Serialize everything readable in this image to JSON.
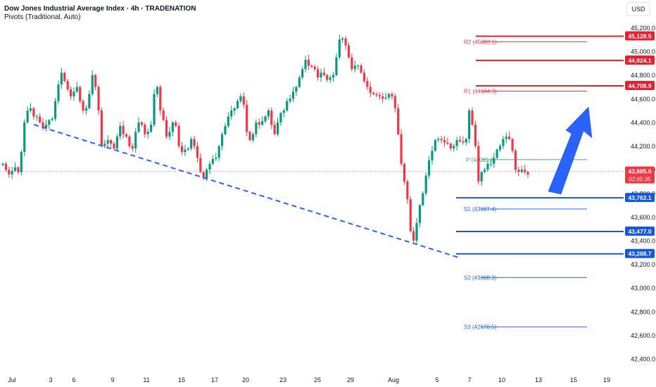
{
  "header": {
    "title": "Dow Jones Industrial Average Index · 4h · TRADENATION",
    "indicator": "Pivots (Traditional, Auto)",
    "currency": "USD"
  },
  "colors": {
    "up": "#089981",
    "down": "#f23645",
    "resistance": "#e5202f",
    "support": "#1558e0",
    "trendline": "#2962ff",
    "arrow": "#2962ff",
    "pivot": "#4caf50"
  },
  "chart_data": {
    "type": "candlestick",
    "timeframe": "4h",
    "ylim": [
      42300,
      45300
    ],
    "x_ticks": [
      "Jul",
      "3",
      "6",
      "9",
      "11",
      "15",
      "17",
      "20",
      "23",
      "25",
      "29",
      "Aug",
      "5",
      "7",
      "10",
      "13",
      "15",
      "19"
    ],
    "y_ticks": [
      "42,400.0",
      "42,600.0",
      "42,800.0",
      "43,000.0",
      "43,200.0",
      "43,400.0",
      "43,600.0",
      "43,800.0",
      "44,000.0",
      "44,200.0",
      "44,400.0",
      "44,600.0",
      "44,800.0",
      "45,000.0",
      "45,200.0"
    ],
    "pivots": [
      {
        "name": "R2",
        "value": 45082.1,
        "label": "R2 (45082.1)"
      },
      {
        "name": "R1",
        "value": 44664.3,
        "label": "R1 (44664.3)"
      },
      {
        "name": "P",
        "value": 44085.0,
        "label": "P (44085.0)"
      },
      {
        "name": "S1",
        "value": 43667.4,
        "label": "S1 (43667.4)"
      },
      {
        "name": "S2",
        "value": 43088.3,
        "label": "S2 (43088.3)"
      },
      {
        "name": "S3",
        "value": 42670.5,
        "label": "S3 (42670.5)"
      }
    ],
    "resistance_levels": [
      {
        "value": 45128.5,
        "label": "45,128.5"
      },
      {
        "value": 44924.1,
        "label": "44,924.1"
      },
      {
        "value": 44708.9,
        "label": "44,708.9"
      }
    ],
    "support_levels": [
      {
        "value": 43762.1,
        "label": "43,762.1"
      },
      {
        "value": 43477.0,
        "label": "43,477.0"
      },
      {
        "value": 43288.7,
        "label": "43,288.7"
      }
    ],
    "current_price": {
      "value": 43985.0,
      "label": "43,985.0",
      "countdown": "02:05:35"
    },
    "closes": [
      44050,
      44000,
      43960,
      43990,
      44020,
      43980,
      44150,
      44400,
      44500,
      44520,
      44450,
      44450,
      44400,
      44350,
      44380,
      44420,
      44430,
      44580,
      44720,
      44820,
      44750,
      44680,
      44620,
      44660,
      44700,
      44580,
      44500,
      44520,
      44640,
      44800,
      44700,
      44500,
      44200,
      44220,
      44250,
      44220,
      44180,
      44280,
      44370,
      44300,
      44280,
      44200,
      44180,
      44320,
      44400,
      44380,
      44300,
      44320,
      44380,
      44640,
      44700,
      44500,
      44420,
      44280,
      44320,
      44400,
      44370,
      44200,
      44150,
      44170,
      44180,
      44260,
      44200,
      44100,
      43980,
      43930,
      44000,
      44050,
      44090,
      44100,
      44200,
      44300,
      44370,
      44450,
      44500,
      44520,
      44580,
      44620,
      44550,
      44320,
      44250,
      44300,
      44400,
      44380,
      44410,
      44450,
      44500,
      44380,
      44300,
      44400,
      44480,
      44500,
      44580,
      44600,
      44660,
      44700,
      44780,
      44850,
      44930,
      44880,
      44870,
      44850,
      44780,
      44820,
      44800,
      44760,
      44780,
      44800,
      44950,
      45100,
      45110,
      45050,
      44950,
      44850,
      44880,
      44880,
      44820,
      44750,
      44700,
      44650,
      44640,
      44630,
      44620,
      44600,
      44610,
      44640,
      44620,
      44520,
      44300,
      44050,
      43900,
      43750,
      43480,
      43400,
      43550,
      43700,
      43800,
      43950,
      44080,
      44160,
      44250,
      44260,
      44250,
      44230,
      44220,
      44180,
      44200,
      44250,
      44240,
      44230,
      44260,
      44500,
      44380,
      44200,
      43900,
      43980,
      44000,
      44050,
      44050,
      44100,
      44170,
      44200,
      44260,
      44280,
      44260,
      44160,
      44000,
      43980,
      44000,
      43980,
      43960
    ],
    "annotations": [
      "descending dashed trendline",
      "blue upward arrow"
    ]
  }
}
